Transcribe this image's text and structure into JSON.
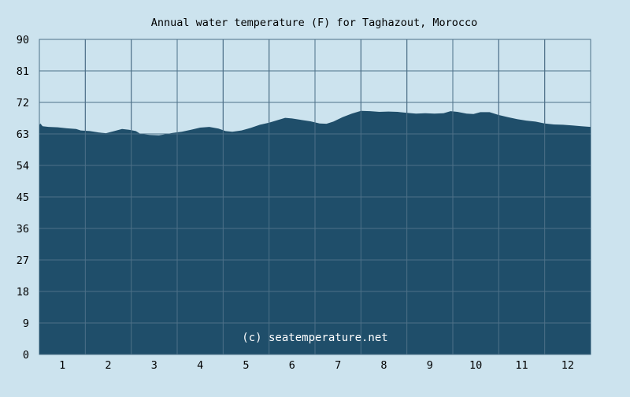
{
  "chart_data": {
    "type": "area",
    "title": "Annual water temperature (F) for Taghazout, Morocco",
    "watermark": "(c) seatemperature.net",
    "xlabel": "",
    "ylabel": "",
    "x_ticks": [
      "1",
      "2",
      "3",
      "4",
      "5",
      "6",
      "7",
      "8",
      "9",
      "10",
      "11",
      "12"
    ],
    "y_ticks": [
      "0",
      "9",
      "18",
      "27",
      "36",
      "45",
      "54",
      "63",
      "72",
      "81",
      "90"
    ],
    "ylim": [
      0,
      90
    ],
    "xlim": [
      0.5,
      12.5
    ],
    "grid": true,
    "colors": {
      "background": "#cce3ee",
      "fill": "#1f4e6a",
      "grid": "#4d7088",
      "text": "#000000",
      "watermark": "#ffffff"
    },
    "series": [
      {
        "values": [
          [
            0.5,
            65.5
          ],
          [
            0.52,
            66.0
          ],
          [
            0.57,
            65.2
          ],
          [
            0.7,
            65.0
          ],
          [
            0.9,
            64.9
          ],
          [
            1.1,
            64.6
          ],
          [
            1.3,
            64.4
          ],
          [
            1.4,
            64.0
          ],
          [
            1.6,
            63.8
          ],
          [
            1.8,
            63.4
          ],
          [
            1.95,
            63.2
          ],
          [
            2.1,
            63.7
          ],
          [
            2.3,
            64.4
          ],
          [
            2.45,
            64.2
          ],
          [
            2.6,
            63.8
          ],
          [
            2.7,
            63.0
          ],
          [
            2.9,
            62.7
          ],
          [
            3.1,
            62.6
          ],
          [
            3.2,
            62.8
          ],
          [
            3.4,
            63.3
          ],
          [
            3.6,
            63.6
          ],
          [
            3.8,
            64.2
          ],
          [
            4.0,
            64.8
          ],
          [
            4.2,
            65.0
          ],
          [
            4.4,
            64.5
          ],
          [
            4.55,
            63.8
          ],
          [
            4.7,
            63.6
          ],
          [
            4.9,
            64.0
          ],
          [
            5.1,
            64.7
          ],
          [
            5.3,
            65.6
          ],
          [
            5.5,
            66.2
          ],
          [
            5.7,
            67.0
          ],
          [
            5.85,
            67.6
          ],
          [
            6.0,
            67.4
          ],
          [
            6.2,
            67.0
          ],
          [
            6.4,
            66.6
          ],
          [
            6.6,
            66.0
          ],
          [
            6.75,
            65.9
          ],
          [
            6.9,
            66.5
          ],
          [
            7.1,
            67.8
          ],
          [
            7.3,
            68.8
          ],
          [
            7.5,
            69.6
          ],
          [
            7.7,
            69.5
          ],
          [
            7.9,
            69.3
          ],
          [
            8.1,
            69.4
          ],
          [
            8.3,
            69.3
          ],
          [
            8.5,
            69.0
          ],
          [
            8.7,
            68.8
          ],
          [
            8.9,
            68.9
          ],
          [
            9.1,
            68.8
          ],
          [
            9.3,
            68.9
          ],
          [
            9.45,
            69.5
          ],
          [
            9.6,
            69.3
          ],
          [
            9.8,
            68.8
          ],
          [
            9.95,
            68.7
          ],
          [
            10.1,
            69.2
          ],
          [
            10.3,
            69.2
          ],
          [
            10.5,
            68.4
          ],
          [
            10.7,
            67.8
          ],
          [
            10.9,
            67.2
          ],
          [
            11.1,
            66.8
          ],
          [
            11.3,
            66.5
          ],
          [
            11.5,
            66.0
          ],
          [
            11.7,
            65.7
          ],
          [
            11.9,
            65.6
          ],
          [
            12.1,
            65.4
          ],
          [
            12.3,
            65.2
          ],
          [
            12.5,
            65.0
          ]
        ]
      }
    ]
  }
}
